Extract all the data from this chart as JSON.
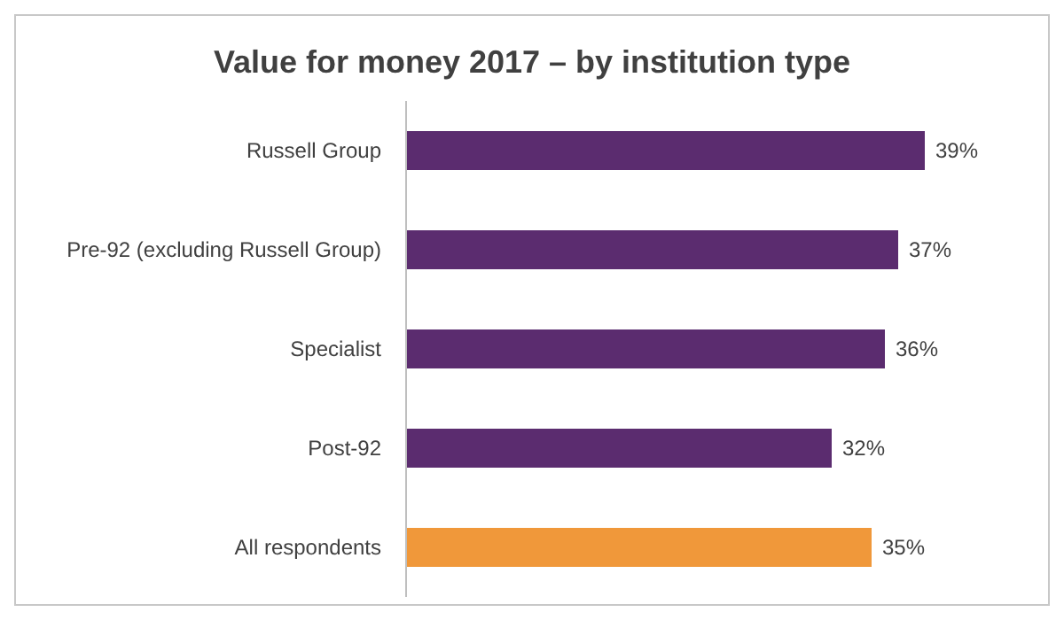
{
  "chart_data": {
    "type": "bar",
    "orientation": "horizontal",
    "title": "Value for money 2017 – by institution type",
    "categories": [
      "Russell Group",
      "Pre-92 (excluding Russell Group)",
      "Specialist",
      "Post-92",
      "All respondents"
    ],
    "values": [
      39,
      37,
      36,
      32,
      35
    ],
    "colors": [
      "#5b2c6f",
      "#5b2c6f",
      "#5b2c6f",
      "#5b2c6f",
      "#f0983a"
    ],
    "value_labels": [
      "39%",
      "37%",
      "36%",
      "32%",
      "35%"
    ],
    "tick_labels": "y",
    "grid": false,
    "legend": false
  }
}
